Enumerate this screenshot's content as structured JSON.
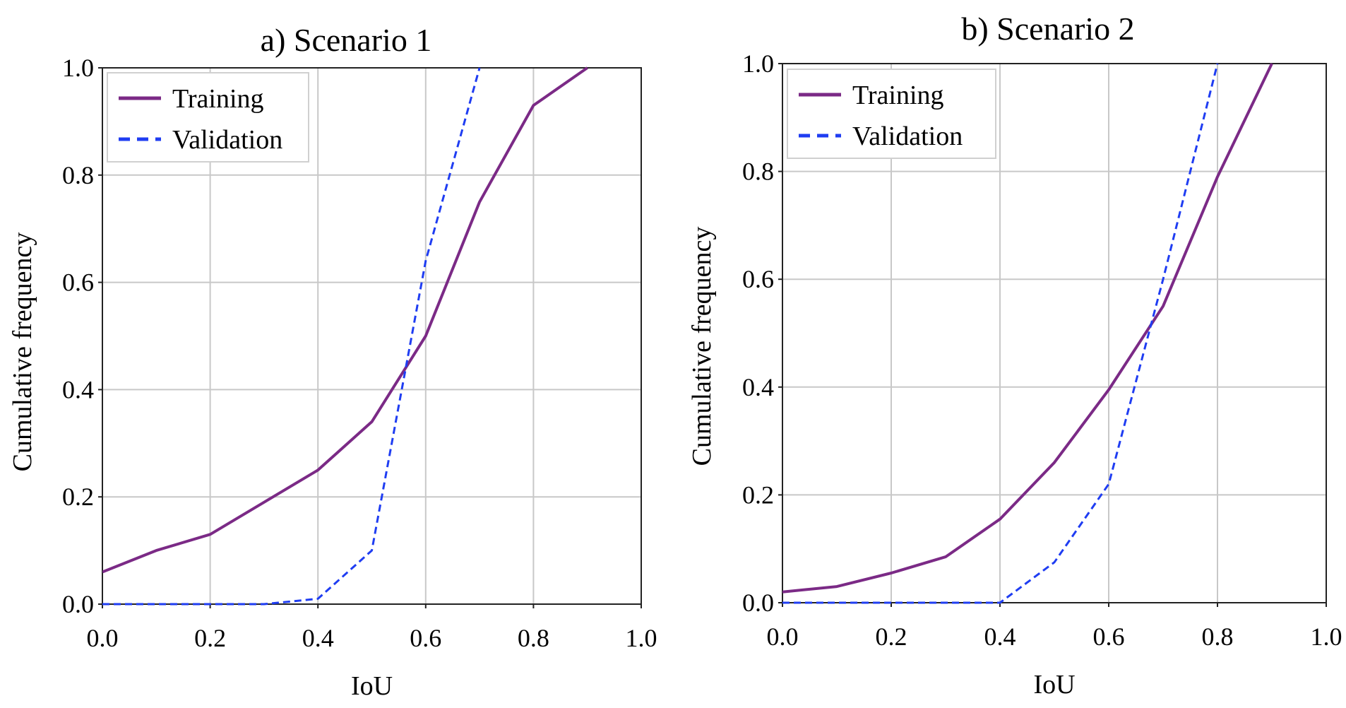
{
  "chart_data": [
    {
      "type": "line",
      "title": "a) Scenario 1",
      "xlabel": "IoU",
      "ylabel": "Cumulative frequency",
      "xlim": [
        0.0,
        1.0
      ],
      "ylim": [
        0.0,
        1.0
      ],
      "xticks": [
        "0.0",
        "0.2",
        "0.4",
        "0.6",
        "0.8",
        "1.0"
      ],
      "yticks": [
        "0.0",
        "0.2",
        "0.4",
        "0.6",
        "0.8",
        "1.0"
      ],
      "grid": true,
      "legend": "top-left",
      "series": [
        {
          "name": "Training",
          "color": "#7b2a86",
          "style": "solid",
          "x": [
            0.0,
            0.1,
            0.2,
            0.3,
            0.4,
            0.5,
            0.6,
            0.7,
            0.8,
            0.9
          ],
          "y": [
            0.06,
            0.1,
            0.13,
            0.19,
            0.25,
            0.34,
            0.5,
            0.75,
            0.93,
            1.0
          ]
        },
        {
          "name": "Validation",
          "color": "#1f3df2",
          "style": "dashed",
          "x": [
            0.0,
            0.1,
            0.2,
            0.3,
            0.4,
            0.5,
            0.6,
            0.7
          ],
          "y": [
            0.0,
            0.0,
            0.0,
            0.0,
            0.01,
            0.1,
            0.64,
            1.0
          ]
        }
      ]
    },
    {
      "type": "line",
      "title": "b) Scenario 2",
      "xlabel": "IoU",
      "ylabel": "Cumulative frequency",
      "xlim": [
        0.0,
        1.0
      ],
      "ylim": [
        0.0,
        1.0
      ],
      "xticks": [
        "0.0",
        "0.2",
        "0.4",
        "0.6",
        "0.8",
        "1.0"
      ],
      "yticks": [
        "0.0",
        "0.2",
        "0.4",
        "0.6",
        "0.8",
        "1.0"
      ],
      "grid": true,
      "legend": "top-left",
      "series": [
        {
          "name": "Training",
          "color": "#7b2a86",
          "style": "solid",
          "x": [
            0.0,
            0.1,
            0.2,
            0.3,
            0.4,
            0.5,
            0.6,
            0.7,
            0.8,
            0.9
          ],
          "y": [
            0.02,
            0.03,
            0.055,
            0.085,
            0.155,
            0.26,
            0.395,
            0.55,
            0.79,
            1.0
          ]
        },
        {
          "name": "Validation",
          "color": "#1f3df2",
          "style": "dashed",
          "x": [
            0.0,
            0.1,
            0.2,
            0.3,
            0.4,
            0.5,
            0.6,
            0.7,
            0.8
          ],
          "y": [
            0.0,
            0.0,
            0.0,
            0.0,
            0.0,
            0.075,
            0.22,
            0.6,
            1.0
          ]
        }
      ]
    }
  ]
}
